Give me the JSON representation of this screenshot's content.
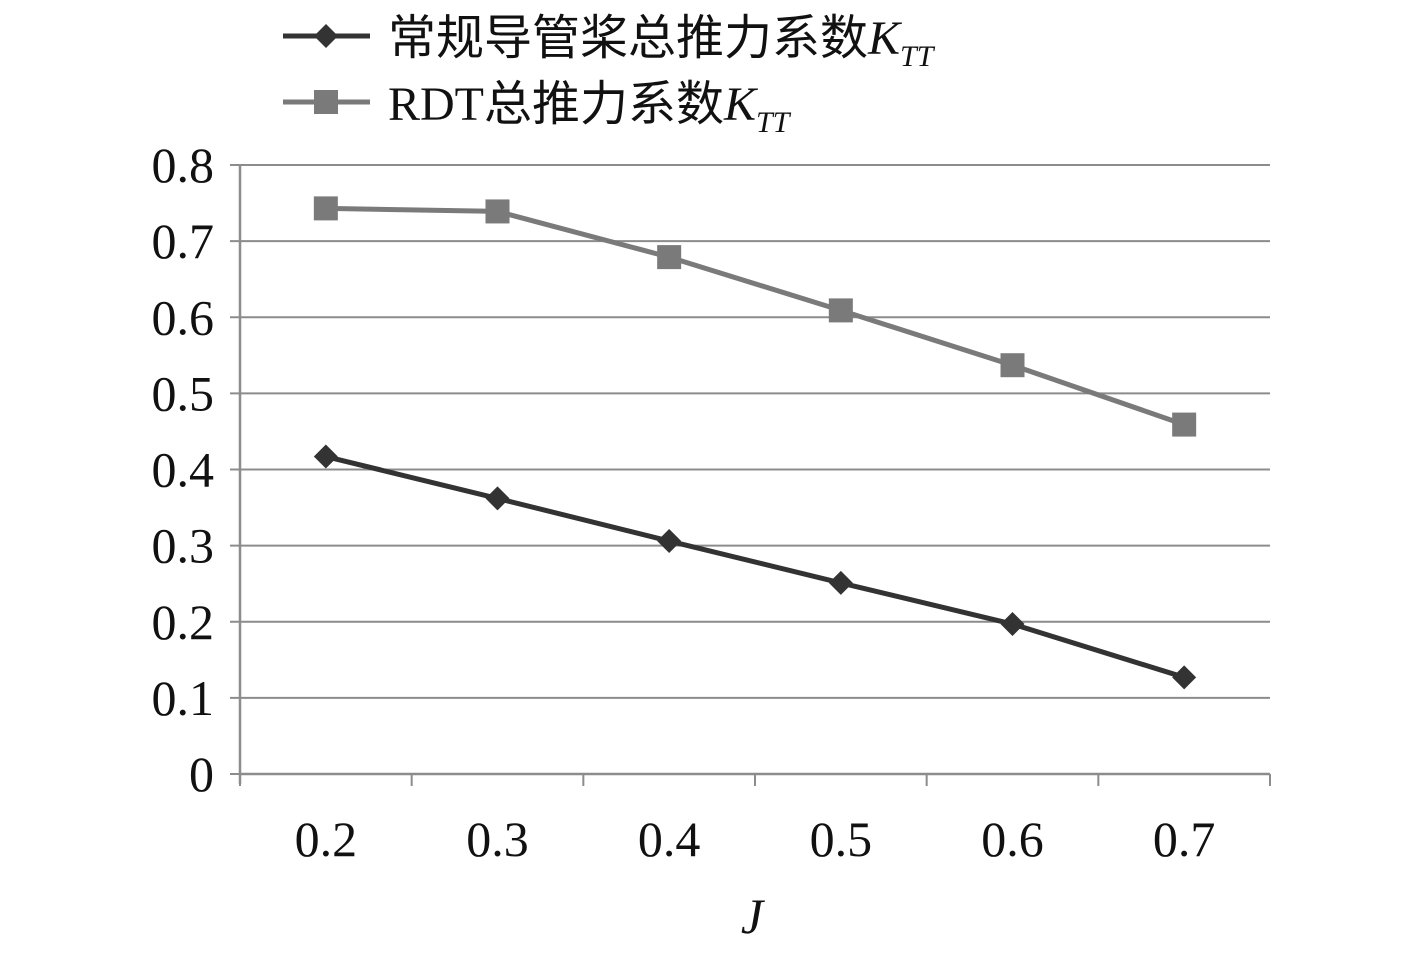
{
  "chart_data": {
    "type": "line",
    "x": [
      0.2,
      0.3,
      0.4,
      0.5,
      0.6,
      0.7
    ],
    "categories": [
      "0.2",
      "0.3",
      "0.4",
      "0.5",
      "0.6",
      "0.7"
    ],
    "xlabel": "J",
    "ylabel": "",
    "ylim": [
      0,
      0.8
    ],
    "yticks": [
      "0",
      "0.1",
      "0.2",
      "0.3",
      "0.4",
      "0.5",
      "0.6",
      "0.7",
      "0.8"
    ],
    "grid": "horizontal",
    "legend_position": "top-left",
    "series": [
      {
        "name": "常规导管桨总推力系数",
        "name_symbol": "K",
        "name_subscript": "TT",
        "marker": "diamond",
        "color": "#333333",
        "values": [
          0.417,
          0.362,
          0.306,
          0.251,
          0.197,
          0.127
        ]
      },
      {
        "name": "RDT总推力系数",
        "name_symbol": "K",
        "name_subscript": "TT",
        "marker": "square",
        "color": "#7a7a7a",
        "values": [
          0.743,
          0.739,
          0.679,
          0.609,
          0.537,
          0.459
        ]
      }
    ]
  }
}
